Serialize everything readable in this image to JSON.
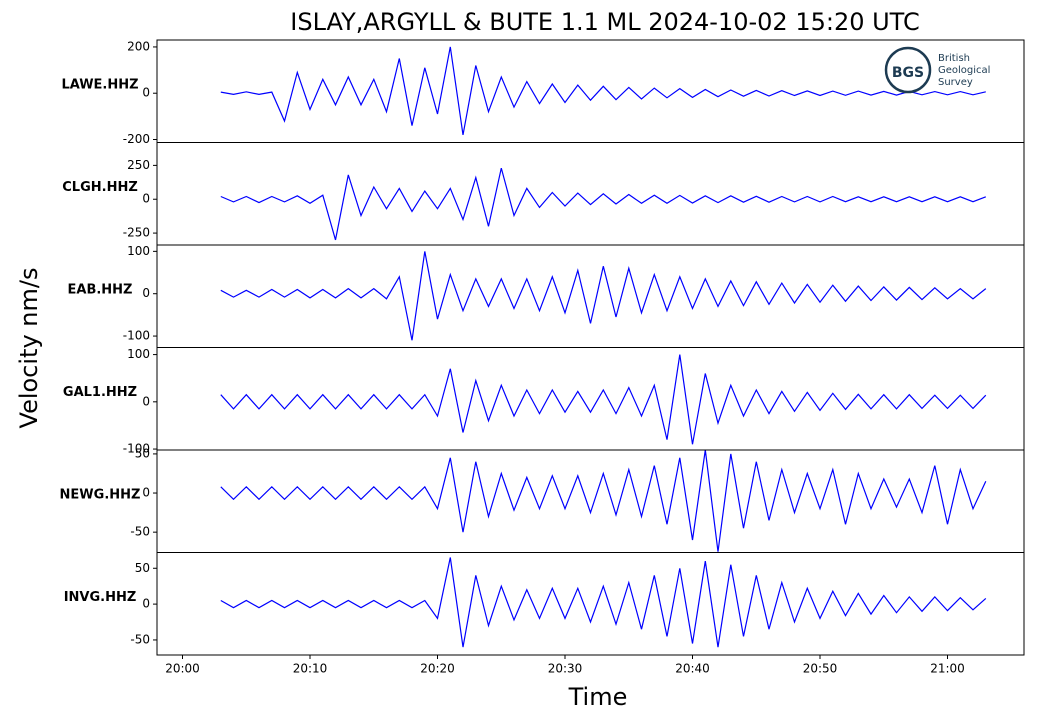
{
  "chart_data": {
    "type": "line",
    "title": "ISLAY,ARGYLL & BUTE 1.1 ML   2024-10-02 15:20 UTC",
    "xlabel": "Time",
    "ylabel": "Velocity nm/s",
    "logo": {
      "mark": "BGS",
      "lines": [
        "British",
        "Geological",
        "Survey"
      ]
    },
    "xlim": [
      "19:58",
      "21:06"
    ],
    "xticks": [
      "20:00",
      "20:10",
      "20:20",
      "20:30",
      "20:40",
      "20:50",
      "21:00"
    ],
    "x": [
      "20:03",
      "20:04",
      "20:05",
      "20:06",
      "20:07",
      "20:08",
      "20:09",
      "20:10",
      "20:11",
      "20:12",
      "20:13",
      "20:14",
      "20:15",
      "20:16",
      "20:17",
      "20:18",
      "20:19",
      "20:20",
      "20:21",
      "20:22",
      "20:23",
      "20:24",
      "20:25",
      "20:26",
      "20:27",
      "20:28",
      "20:29",
      "20:30",
      "20:31",
      "20:32",
      "20:33",
      "20:34",
      "20:35",
      "20:36",
      "20:37",
      "20:38",
      "20:39",
      "20:40",
      "20:41",
      "20:42",
      "20:43",
      "20:44",
      "20:45",
      "20:46",
      "20:47",
      "20:48",
      "20:49",
      "20:50",
      "20:51",
      "20:52",
      "20:53",
      "20:54",
      "20:55",
      "20:56",
      "20:57",
      "20:58",
      "20:59",
      "21:00",
      "21:01",
      "21:02",
      "21:03"
    ],
    "series": [
      {
        "name": "LAWE.HHZ",
        "color": "#0000ff",
        "ylim": [
          -213,
          230
        ],
        "yticks": [
          -200,
          0,
          200
        ],
        "values": [
          5,
          -5,
          6,
          -5,
          5,
          -120,
          90,
          -70,
          60,
          -50,
          70,
          -50,
          60,
          -80,
          150,
          -140,
          110,
          -90,
          200,
          -180,
          120,
          -80,
          70,
          -60,
          50,
          -45,
          40,
          -40,
          35,
          -30,
          30,
          -28,
          25,
          -25,
          22,
          -20,
          20,
          -18,
          16,
          -15,
          14,
          -13,
          12,
          -12,
          11,
          -10,
          10,
          -10,
          9,
          -9,
          9,
          -8,
          8,
          -8,
          8,
          -7,
          7,
          -7,
          7,
          -7,
          6
        ]
      },
      {
        "name": "CLGH.HHZ",
        "color": "#0000ff",
        "ylim": [
          -338,
          419
        ],
        "yticks": [
          -250,
          0,
          250
        ],
        "values": [
          20,
          -20,
          20,
          -25,
          20,
          -20,
          25,
          -30,
          30,
          -300,
          180,
          -120,
          90,
          -70,
          80,
          -90,
          60,
          -70,
          80,
          -150,
          160,
          -200,
          230,
          -120,
          80,
          -60,
          50,
          -50,
          45,
          -40,
          40,
          -35,
          35,
          -30,
          30,
          -30,
          28,
          -28,
          25,
          -25,
          25,
          -22,
          22,
          -22,
          20,
          -20,
          20,
          -20,
          20,
          -18,
          18,
          -18,
          18,
          -18,
          18,
          -18,
          18,
          -18,
          18,
          -18,
          18
        ]
      },
      {
        "name": "EAB.HHZ",
        "color": "#0000ff",
        "ylim": [
          -127,
          115
        ],
        "yticks": [
          -100,
          0,
          100
        ],
        "values": [
          8,
          -8,
          8,
          -8,
          10,
          -8,
          10,
          -10,
          10,
          -10,
          12,
          -10,
          12,
          -12,
          40,
          -110,
          100,
          -60,
          45,
          -40,
          35,
          -30,
          35,
          -35,
          35,
          -40,
          40,
          -45,
          55,
          -70,
          65,
          -55,
          60,
          -45,
          45,
          -40,
          40,
          -35,
          35,
          -30,
          30,
          -28,
          28,
          -25,
          25,
          -22,
          22,
          -20,
          20,
          -18,
          18,
          -16,
          16,
          -15,
          15,
          -14,
          14,
          -12,
          12,
          -12,
          12
        ]
      },
      {
        "name": "GAL1.HHZ",
        "color": "#0000ff",
        "ylim": [
          -102,
          115
        ],
        "yticks": [
          -100,
          0,
          100
        ],
        "values": [
          15,
          -15,
          15,
          -15,
          15,
          -15,
          15,
          -15,
          15,
          -15,
          15,
          -15,
          15,
          -15,
          15,
          -15,
          15,
          -30,
          70,
          -65,
          45,
          -40,
          35,
          -30,
          25,
          -25,
          25,
          -22,
          22,
          -22,
          25,
          -25,
          30,
          -30,
          35,
          -80,
          100,
          -90,
          60,
          -45,
          35,
          -30,
          25,
          -25,
          22,
          -20,
          20,
          -18,
          18,
          -16,
          16,
          -15,
          15,
          -15,
          15,
          -14,
          14,
          -14,
          14,
          -14,
          14
        ]
      },
      {
        "name": "NEWG.HHZ",
        "color": "#0000ff",
        "ylim": [
          -76,
          55
        ],
        "yticks": [
          -50,
          0,
          50
        ],
        "values": [
          8,
          -8,
          8,
          -8,
          8,
          -8,
          8,
          -8,
          8,
          -8,
          8,
          -8,
          8,
          -8,
          8,
          -8,
          8,
          -20,
          45,
          -50,
          40,
          -30,
          25,
          -22,
          20,
          -20,
          22,
          -20,
          22,
          -25,
          25,
          -28,
          30,
          -30,
          35,
          -40,
          45,
          -60,
          55,
          -75,
          50,
          -45,
          40,
          -35,
          30,
          -25,
          25,
          -20,
          30,
          -40,
          25,
          -20,
          18,
          -18,
          18,
          -25,
          35,
          -40,
          30,
          -20,
          15
        ]
      },
      {
        "name": "INVG.HHZ",
        "color": "#0000ff",
        "ylim": [
          -71,
          72
        ],
        "yticks": [
          -50,
          0,
          50
        ],
        "values": [
          5,
          -5,
          5,
          -5,
          5,
          -5,
          5,
          -5,
          5,
          -5,
          5,
          -5,
          5,
          -5,
          5,
          -5,
          5,
          -20,
          65,
          -60,
          40,
          -30,
          25,
          -22,
          20,
          -20,
          22,
          -20,
          22,
          -25,
          25,
          -28,
          30,
          -35,
          40,
          -45,
          50,
          -55,
          60,
          -60,
          55,
          -45,
          40,
          -35,
          30,
          -25,
          22,
          -20,
          18,
          -16,
          15,
          -14,
          12,
          -12,
          10,
          -10,
          10,
          -9,
          9,
          -8,
          8
        ]
      }
    ]
  }
}
